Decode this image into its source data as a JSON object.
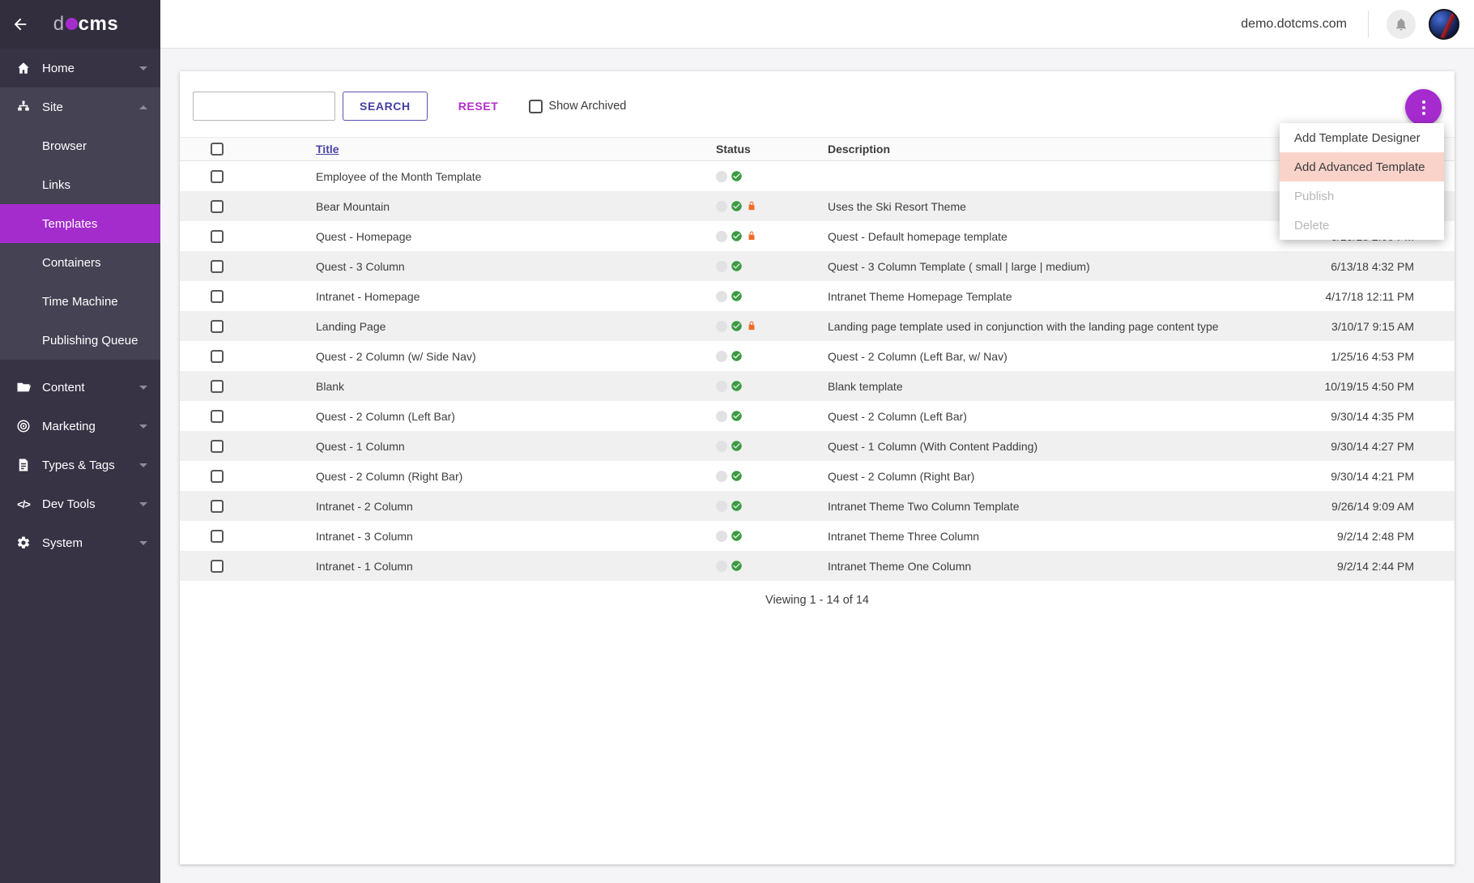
{
  "topbar": {
    "host": "demo.dotcms.com"
  },
  "sidebar": {
    "logo_prefix": "d",
    "logo_suffix": "cms",
    "home_label": "Home",
    "site_label": "Site",
    "site_children": [
      {
        "label": "Browser",
        "selected": false
      },
      {
        "label": "Links",
        "selected": false
      },
      {
        "label": "Templates",
        "selected": true
      },
      {
        "label": "Containers",
        "selected": false
      },
      {
        "label": "Time Machine",
        "selected": false
      },
      {
        "label": "Publishing Queue",
        "selected": false
      }
    ],
    "bottom_items": [
      {
        "label": "Content",
        "icon": "folder-icon"
      },
      {
        "label": "Marketing",
        "icon": "bullseye-icon"
      },
      {
        "label": "Types & Tags",
        "icon": "document-icon"
      },
      {
        "label": "Dev Tools",
        "icon": "code-icon"
      },
      {
        "label": "System",
        "icon": "gear-icon"
      }
    ]
  },
  "toolbar": {
    "search_value": "",
    "search_label": "SEARCH",
    "reset_label": "RESET",
    "show_archived_label": "Show Archived"
  },
  "action_menu": {
    "items": [
      {
        "label": "Add Template Designer",
        "state": "normal"
      },
      {
        "label": "Add Advanced Template",
        "state": "highlighted"
      },
      {
        "label": "Publish",
        "state": "disabled"
      },
      {
        "label": "Delete",
        "state": "disabled"
      }
    ]
  },
  "table": {
    "headers": {
      "title": "Title",
      "status": "Status",
      "description": "Description"
    },
    "rows": [
      {
        "title": "Employee of the Month Template",
        "status": [
          "draft",
          "published"
        ],
        "description": "",
        "date": ""
      },
      {
        "title": "Bear Mountain",
        "status": [
          "draft",
          "published",
          "locked"
        ],
        "description": "Uses the Ski Resort Theme",
        "date": ""
      },
      {
        "title": "Quest - Homepage",
        "status": [
          "draft",
          "published",
          "locked"
        ],
        "description": "Quest - Default homepage template",
        "date": "6/19/18 2:00 PM"
      },
      {
        "title": "Quest - 3 Column",
        "status": [
          "draft",
          "published"
        ],
        "description": "Quest - 3 Column Template ( small | large | medium)",
        "date": "6/13/18 4:32 PM"
      },
      {
        "title": "Intranet - Homepage",
        "status": [
          "draft",
          "published"
        ],
        "description": "Intranet Theme Homepage Template",
        "date": "4/17/18 12:11 PM"
      },
      {
        "title": "Landing Page",
        "status": [
          "draft",
          "published",
          "locked"
        ],
        "description": "Landing page template used in conjunction with the landing page content type",
        "date": "3/10/17 9:15 AM"
      },
      {
        "title": "Quest - 2 Column (w/ Side Nav)",
        "status": [
          "draft",
          "published"
        ],
        "description": "Quest - 2 Column (Left Bar, w/ Nav)",
        "date": "1/25/16 4:53 PM"
      },
      {
        "title": "Blank",
        "status": [
          "draft",
          "published"
        ],
        "description": "Blank template",
        "date": "10/19/15 4:50 PM"
      },
      {
        "title": "Quest - 2 Column (Left Bar)",
        "status": [
          "draft",
          "published"
        ],
        "description": "Quest - 2 Column (Left Bar)",
        "date": "9/30/14 4:35 PM"
      },
      {
        "title": "Quest - 1 Column",
        "status": [
          "draft",
          "published"
        ],
        "description": "Quest - 1 Column (With Content Padding)",
        "date": "9/30/14 4:27 PM"
      },
      {
        "title": "Quest - 2 Column (Right Bar)",
        "status": [
          "draft",
          "published"
        ],
        "description": "Quest - 2 Column (Right Bar)",
        "date": "9/30/14 4:21 PM"
      },
      {
        "title": "Intranet - 2 Column",
        "status": [
          "draft",
          "published"
        ],
        "description": "Intranet Theme Two Column Template",
        "date": "9/26/14 9:09 AM"
      },
      {
        "title": "Intranet - 3 Column",
        "status": [
          "draft",
          "published"
        ],
        "description": "Intranet Theme Three Column",
        "date": "9/2/14 2:48 PM"
      },
      {
        "title": "Intranet - 1 Column",
        "status": [
          "draft",
          "published"
        ],
        "description": "Intranet Theme One Column",
        "date": "9/2/14 2:44 PM"
      }
    ],
    "footer": "Viewing 1 - 14 of 14"
  },
  "colors": {
    "accent_purple": "#a42ccd",
    "indigo_action": "#463fa2",
    "reset_magenta": "#b32dcc",
    "menu_highlight": "#f9d3ca",
    "status_published_green": "#3b9a42",
    "status_locked_orange": "#ee6c2a",
    "status_draft_gray": "#e2e2e4",
    "sidebar_bg": "#373345",
    "sidebar_section_bg": "#454253"
  }
}
